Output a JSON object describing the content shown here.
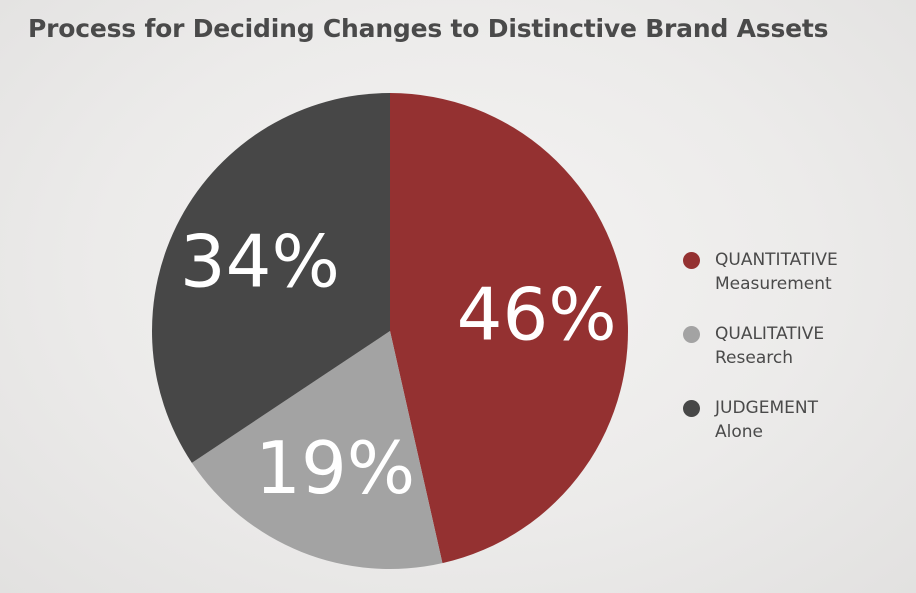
{
  "chart_data": {
    "type": "pie",
    "title": "Process for Deciding Changes to Distinctive Brand Assets",
    "slices": [
      {
        "key": "quantitative",
        "label": [
          "QUANTITATIVE",
          "Measurement"
        ],
        "value": 46,
        "display": "46%",
        "color": "#943131"
      },
      {
        "key": "qualitative",
        "label": [
          "QUALITATIVE",
          "Research"
        ],
        "value": 19,
        "display": "19%",
        "color": "#a3a3a3"
      },
      {
        "key": "judgement",
        "label": [
          "JUDGEMENT",
          "Alone"
        ],
        "value": 34,
        "display": "34%",
        "color": "#474747"
      }
    ],
    "start": "12 o'clock",
    "direction": "clockwise",
    "legend_position": "right"
  }
}
